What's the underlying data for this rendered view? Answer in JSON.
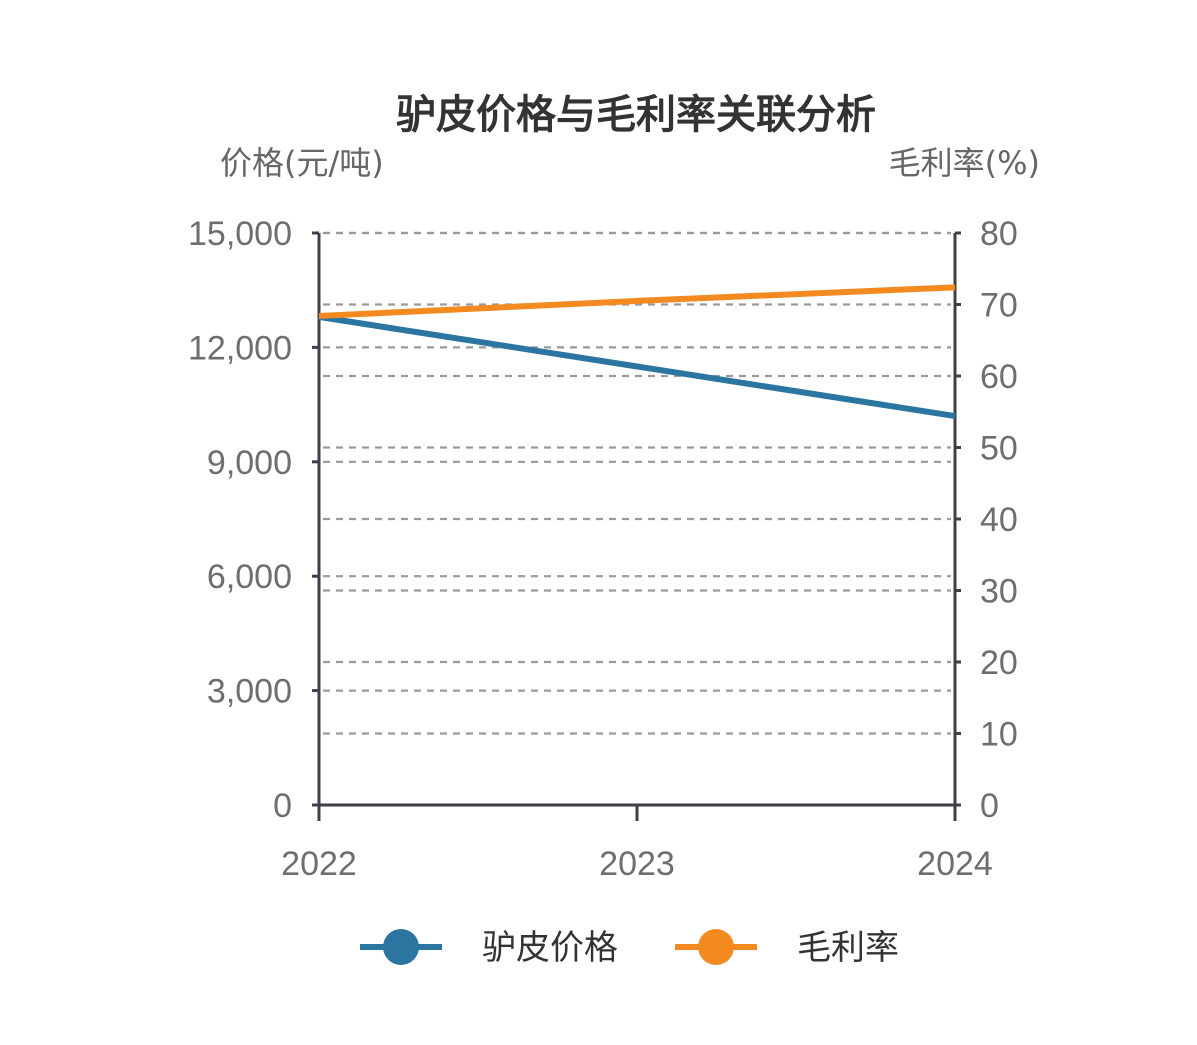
{
  "chart_data": {
    "type": "line",
    "title": "驴皮价格与毛利率关联分析",
    "x": [
      "2022",
      "2023",
      "2024"
    ],
    "y_left": {
      "label": "价格(元/吨)",
      "range": [
        0,
        15000
      ],
      "ticks": [
        0,
        3000,
        6000,
        9000,
        12000,
        15000
      ],
      "tick_labels": [
        "0",
        "3,000",
        "6,000",
        "9,000",
        "12,000",
        "15,000"
      ]
    },
    "y_right": {
      "label": "毛利率(%)",
      "range": [
        0,
        80
      ],
      "ticks": [
        0,
        10,
        20,
        30,
        40,
        50,
        60,
        70,
        80
      ],
      "tick_labels": [
        "0",
        "10",
        "20",
        "30",
        "40",
        "50",
        "60",
        "70",
        "80"
      ]
    },
    "series": [
      {
        "name": "驴皮价格",
        "axis": "left",
        "color": "#2a76a0",
        "values": [
          12800,
          11500,
          10200
        ]
      },
      {
        "name": "毛利率",
        "axis": "right",
        "color": "#f28a20",
        "values": [
          68.4,
          70.5,
          72.4
        ]
      }
    ],
    "grid": true,
    "legend": "bottom"
  },
  "colors": {
    "axis": "#3d4048",
    "grid": "#9a9a9a",
    "text": "#6e6e6e"
  }
}
